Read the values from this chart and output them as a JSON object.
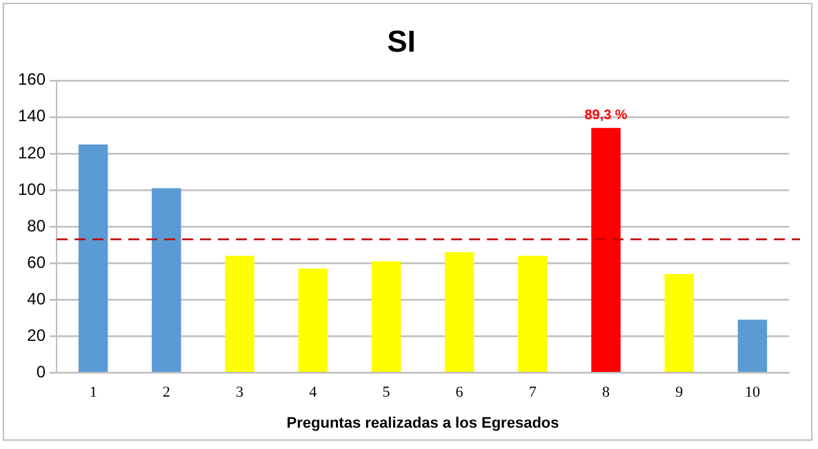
{
  "chart_data": {
    "type": "bar",
    "title": "SI",
    "xlabel": "Preguntas realizadas a los Egresados",
    "categories": [
      "1",
      "2",
      "3",
      "4",
      "5",
      "6",
      "7",
      "8",
      "9",
      "10"
    ],
    "values": [
      125,
      101,
      64,
      57,
      61,
      66,
      64,
      134,
      54,
      29
    ],
    "colors": [
      "#5b9bd5",
      "#5b9bd5",
      "#ffff00",
      "#ffff00",
      "#ffff00",
      "#ffff00",
      "#ffff00",
      "#ff0000",
      "#ffff00",
      "#5b9bd5"
    ],
    "annotations": [
      {
        "text": "89,3 %",
        "x": "8",
        "y": 134
      }
    ],
    "ylim": [
      0,
      160
    ],
    "yticks": [
      0,
      20,
      40,
      60,
      80,
      100,
      120,
      140,
      160
    ],
    "ref_lines": [
      {
        "axis": "y",
        "value": 73,
        "color": "#c00000",
        "line_style": "dashed"
      }
    ],
    "grid": "y",
    "legend": false
  }
}
